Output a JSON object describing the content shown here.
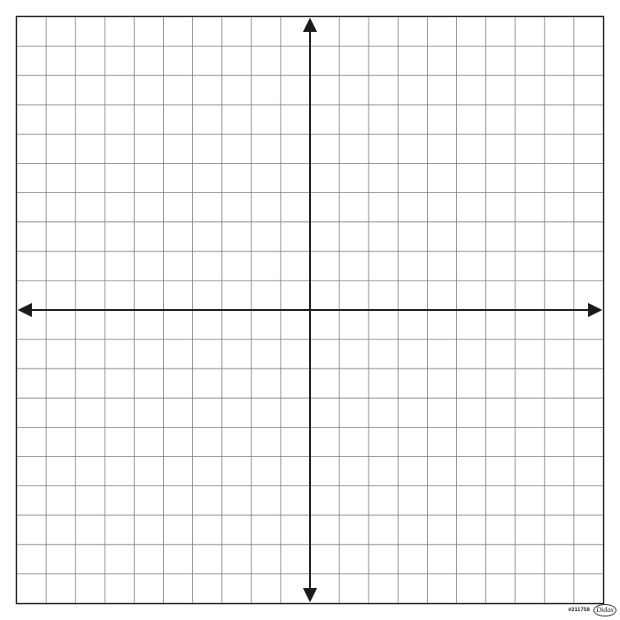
{
  "graph": {
    "grid_cells": 20,
    "axis_color": "#1a1a1a",
    "grid_color": "#7a7a7a",
    "axes": {
      "x_axis": "horizontal-double-arrow",
      "y_axis": "vertical-double-arrow"
    }
  },
  "footer": {
    "product_code": "#211758",
    "logo_text": "Didax",
    "logo_icon": "oval-logo"
  }
}
